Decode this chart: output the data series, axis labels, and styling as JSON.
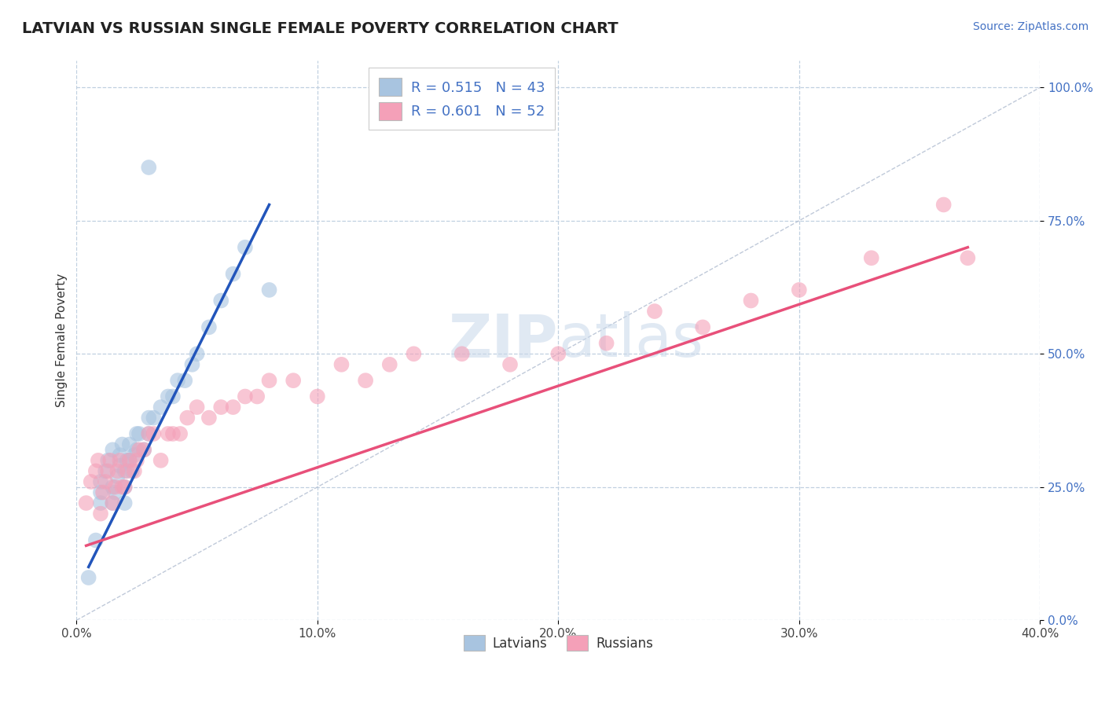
{
  "title": "LATVIAN VS RUSSIAN SINGLE FEMALE POVERTY CORRELATION CHART",
  "source": "Source: ZipAtlas.com",
  "ylabel": "Single Female Poverty",
  "xlim": [
    0.0,
    0.4
  ],
  "ylim": [
    0.0,
    1.05
  ],
  "xticks": [
    0.0,
    0.1,
    0.2,
    0.3,
    0.4
  ],
  "xtick_labels": [
    "0.0%",
    "10.0%",
    "20.0%",
    "30.0%",
    "40.0%"
  ],
  "yticks": [
    0.0,
    0.25,
    0.5,
    0.75,
    1.0
  ],
  "ytick_labels": [
    "0.0%",
    "25.0%",
    "50.0%",
    "75.0%",
    "100.0%"
  ],
  "latvian_color": "#a8c4e0",
  "russian_color": "#f4a0b8",
  "latvian_line_color": "#2255bb",
  "russian_line_color": "#e8507a",
  "diagonal_color": "#b0bcd0",
  "R_latvian": 0.515,
  "N_latvian": 43,
  "R_russian": 0.601,
  "N_russian": 52,
  "legend_label_latvians": "Latvians",
  "legend_label_russians": "Russians",
  "latvian_scatter_x": [
    0.005,
    0.008,
    0.01,
    0.01,
    0.01,
    0.012,
    0.013,
    0.015,
    0.015,
    0.015,
    0.016,
    0.017,
    0.018,
    0.018,
    0.019,
    0.02,
    0.02,
    0.02,
    0.021,
    0.022,
    0.022,
    0.023,
    0.024,
    0.025,
    0.025,
    0.026,
    0.028,
    0.03,
    0.03,
    0.032,
    0.035,
    0.038,
    0.04,
    0.042,
    0.045,
    0.048,
    0.05,
    0.055,
    0.06,
    0.065,
    0.07,
    0.08,
    0.03
  ],
  "latvian_scatter_y": [
    0.08,
    0.15,
    0.22,
    0.24,
    0.26,
    0.28,
    0.3,
    0.22,
    0.25,
    0.32,
    0.24,
    0.27,
    0.29,
    0.31,
    0.33,
    0.22,
    0.25,
    0.28,
    0.3,
    0.3,
    0.33,
    0.28,
    0.31,
    0.32,
    0.35,
    0.35,
    0.32,
    0.35,
    0.38,
    0.38,
    0.4,
    0.42,
    0.42,
    0.45,
    0.45,
    0.48,
    0.5,
    0.55,
    0.6,
    0.65,
    0.7,
    0.62,
    0.85
  ],
  "russian_scatter_x": [
    0.004,
    0.006,
    0.008,
    0.009,
    0.01,
    0.011,
    0.012,
    0.013,
    0.014,
    0.015,
    0.016,
    0.017,
    0.018,
    0.019,
    0.02,
    0.021,
    0.022,
    0.024,
    0.025,
    0.026,
    0.028,
    0.03,
    0.032,
    0.035,
    0.038,
    0.04,
    0.043,
    0.046,
    0.05,
    0.055,
    0.06,
    0.065,
    0.07,
    0.075,
    0.08,
    0.09,
    0.1,
    0.11,
    0.12,
    0.13,
    0.14,
    0.16,
    0.18,
    0.2,
    0.22,
    0.24,
    0.26,
    0.28,
    0.3,
    0.33,
    0.36,
    0.37
  ],
  "russian_scatter_y": [
    0.22,
    0.26,
    0.28,
    0.3,
    0.2,
    0.24,
    0.26,
    0.28,
    0.3,
    0.22,
    0.25,
    0.28,
    0.3,
    0.25,
    0.25,
    0.28,
    0.3,
    0.28,
    0.3,
    0.32,
    0.32,
    0.35,
    0.35,
    0.3,
    0.35,
    0.35,
    0.35,
    0.38,
    0.4,
    0.38,
    0.4,
    0.4,
    0.42,
    0.42,
    0.45,
    0.45,
    0.42,
    0.48,
    0.45,
    0.48,
    0.5,
    0.5,
    0.48,
    0.5,
    0.52,
    0.58,
    0.55,
    0.6,
    0.62,
    0.68,
    0.78,
    0.68
  ],
  "latvian_line_x": [
    0.005,
    0.08
  ],
  "latvian_line_y": [
    0.1,
    0.78
  ],
  "russian_line_x": [
    0.004,
    0.37
  ],
  "russian_line_y": [
    0.14,
    0.7
  ],
  "background_color": "#ffffff",
  "grid_color": "#c0d0e0",
  "title_fontsize": 14,
  "source_fontsize": 10,
  "tick_fontsize": 11,
  "ylabel_fontsize": 11
}
